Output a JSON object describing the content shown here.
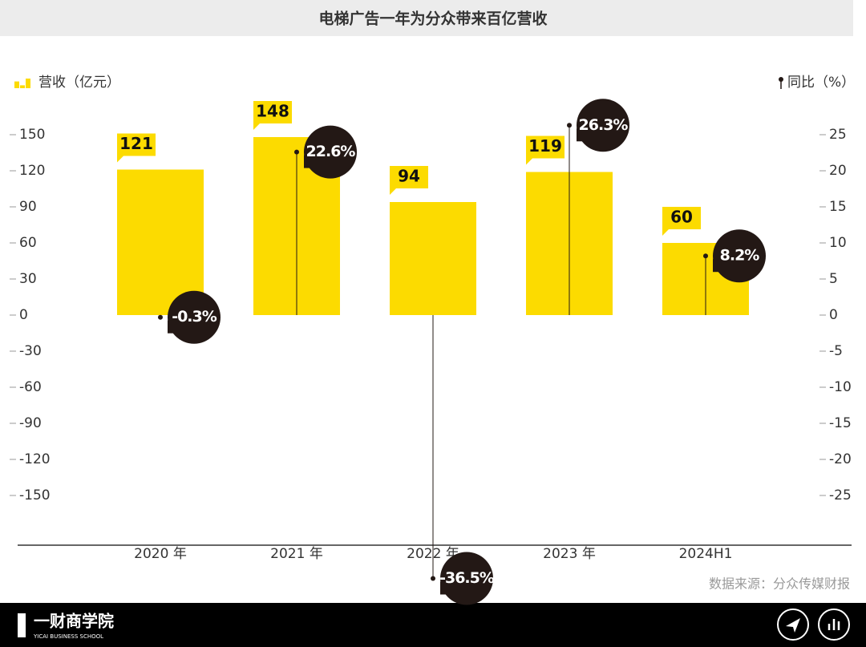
{
  "chart_data": {
    "type": "bar",
    "title": "电梯广告一年为分众带来百亿营收",
    "categories": [
      "2020 年",
      "2021 年",
      "2022 年",
      "2023 年",
      "2024H1"
    ],
    "series": [
      {
        "name": "营收（亿元）",
        "type": "bar",
        "color": "#fcdb00",
        "values": [
          121,
          148,
          94,
          119,
          60
        ]
      },
      {
        "name": "同比（%）",
        "type": "lollipop",
        "axis": "y2",
        "color": "#231815",
        "values": [
          -0.3,
          22.6,
          -36.5,
          26.3,
          8.2
        ],
        "value_labels": [
          "-0.3%",
          "22.6%",
          "-36.5%",
          "26.3%",
          "8.2%"
        ]
      }
    ],
    "ylim": [
      -192,
      162
    ],
    "yticks": [
      150,
      120,
      90,
      60,
      30,
      0,
      -30,
      -60,
      -90,
      -120,
      -150
    ],
    "y2lim": [
      -32,
      27
    ],
    "y2ticks": [
      25,
      20,
      15,
      10,
      5,
      0,
      -5,
      -10,
      -15,
      -20,
      -25
    ],
    "source": "数据来源：分众传媒财报"
  },
  "footer": {
    "brand": "一财商学院",
    "brand_en": "YICAI BUSINESS SCHOOL"
  }
}
